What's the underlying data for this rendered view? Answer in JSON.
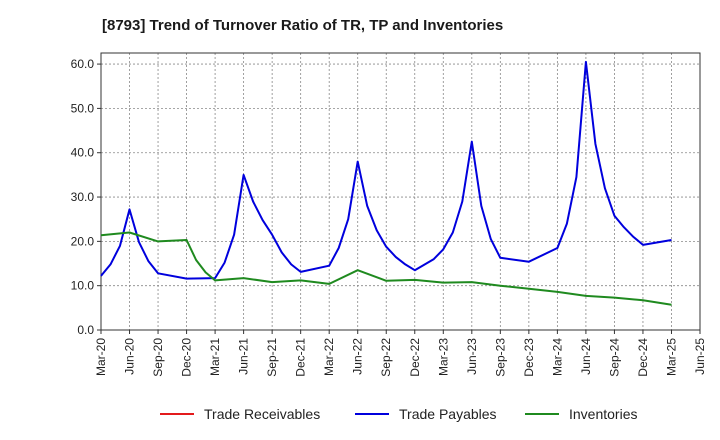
{
  "chart_data": {
    "type": "line",
    "title": "[8793]  Trend of Turnover Ratio of TR, TP and Inventories",
    "xlabel": "",
    "ylabel": "",
    "ylim": [
      0,
      62.5
    ],
    "yticks": [
      "0.0",
      "10.0",
      "20.0",
      "30.0",
      "40.0",
      "50.0",
      "60.0"
    ],
    "xtick_labels": [
      "Mar-20",
      "Jun-20",
      "Sep-20",
      "Dec-20",
      "Mar-21",
      "Jun-21",
      "Sep-21",
      "Dec-21",
      "Mar-22",
      "Jun-22",
      "Sep-22",
      "Dec-22",
      "Mar-23",
      "Jun-23",
      "Sep-23",
      "Dec-23",
      "Mar-24",
      "Jun-24",
      "Sep-24",
      "Dec-24",
      "Mar-25",
      "Jun-25"
    ],
    "grid": true,
    "legend_position": "bottom",
    "series": [
      {
        "name": "Trade Receivables",
        "color": "#e31a1c",
        "points": []
      },
      {
        "name": "Trade Payables",
        "color": "#0000dd",
        "points": [
          [
            "Mar-20",
            12.2
          ],
          [
            "Apr-20",
            14.8
          ],
          [
            "May-20",
            19.0
          ],
          [
            "Jun-20",
            27.2
          ],
          [
            "Jul-20",
            19.8
          ],
          [
            "Aug-20",
            15.5
          ],
          [
            "Sep-20",
            12.8
          ],
          [
            "Dec-20",
            11.6
          ],
          [
            "Mar-21",
            11.7
          ],
          [
            "Apr-21",
            15.2
          ],
          [
            "May-21",
            21.5
          ],
          [
            "Jun-21",
            35.0
          ],
          [
            "Jul-21",
            29.0
          ],
          [
            "Aug-21",
            24.8
          ],
          [
            "Sep-21",
            21.5
          ],
          [
            "Oct-21",
            17.5
          ],
          [
            "Nov-21",
            14.8
          ],
          [
            "Dec-21",
            13.1
          ],
          [
            "Mar-22",
            14.5
          ],
          [
            "Apr-22",
            18.5
          ],
          [
            "May-22",
            25.0
          ],
          [
            "Jun-22",
            38.0
          ],
          [
            "Jul-22",
            28.0
          ],
          [
            "Aug-22",
            22.5
          ],
          [
            "Sep-22",
            18.8
          ],
          [
            "Oct-22",
            16.5
          ],
          [
            "Nov-22",
            14.8
          ],
          [
            "Dec-22",
            13.5
          ],
          [
            "Feb-23",
            16.0
          ],
          [
            "Mar-23",
            18.2
          ],
          [
            "Apr-23",
            22.0
          ],
          [
            "May-23",
            29.0
          ],
          [
            "Jun-23",
            42.5
          ],
          [
            "Jul-23",
            28.0
          ],
          [
            "Aug-23",
            20.5
          ],
          [
            "Sep-23",
            16.3
          ],
          [
            "Dec-23",
            15.4
          ],
          [
            "Mar-24",
            18.5
          ],
          [
            "Apr-24",
            24.0
          ],
          [
            "May-24",
            34.5
          ],
          [
            "Jun-24",
            60.5
          ],
          [
            "Jul-24",
            42.0
          ],
          [
            "Aug-24",
            32.0
          ],
          [
            "Sep-24",
            25.8
          ],
          [
            "Oct-24",
            23.2
          ],
          [
            "Nov-24",
            21.0
          ],
          [
            "Dec-24",
            19.2
          ],
          [
            "Mar-25",
            20.3
          ]
        ]
      },
      {
        "name": "Inventories",
        "color": "#1f8a1f",
        "points": [
          [
            "Mar-20",
            21.4
          ],
          [
            "Jun-20",
            22.0
          ],
          [
            "Sep-20",
            20.0
          ],
          [
            "Dec-20",
            20.3
          ],
          [
            "Jan-21",
            15.8
          ],
          [
            "Feb-21",
            13.0
          ],
          [
            "Mar-21",
            11.2
          ],
          [
            "Jun-21",
            11.7
          ],
          [
            "Sep-21",
            10.8
          ],
          [
            "Dec-21",
            11.2
          ],
          [
            "Mar-22",
            10.4
          ],
          [
            "Jun-22",
            13.5
          ],
          [
            "Sep-22",
            11.1
          ],
          [
            "Dec-22",
            11.3
          ],
          [
            "Mar-23",
            10.7
          ],
          [
            "Jun-23",
            10.8
          ],
          [
            "Sep-23",
            10.0
          ],
          [
            "Dec-23",
            9.3
          ],
          [
            "Mar-24",
            8.6
          ],
          [
            "Jun-24",
            7.7
          ],
          [
            "Sep-24",
            7.3
          ],
          [
            "Dec-24",
            6.7
          ],
          [
            "Mar-25",
            5.7
          ]
        ]
      }
    ]
  }
}
